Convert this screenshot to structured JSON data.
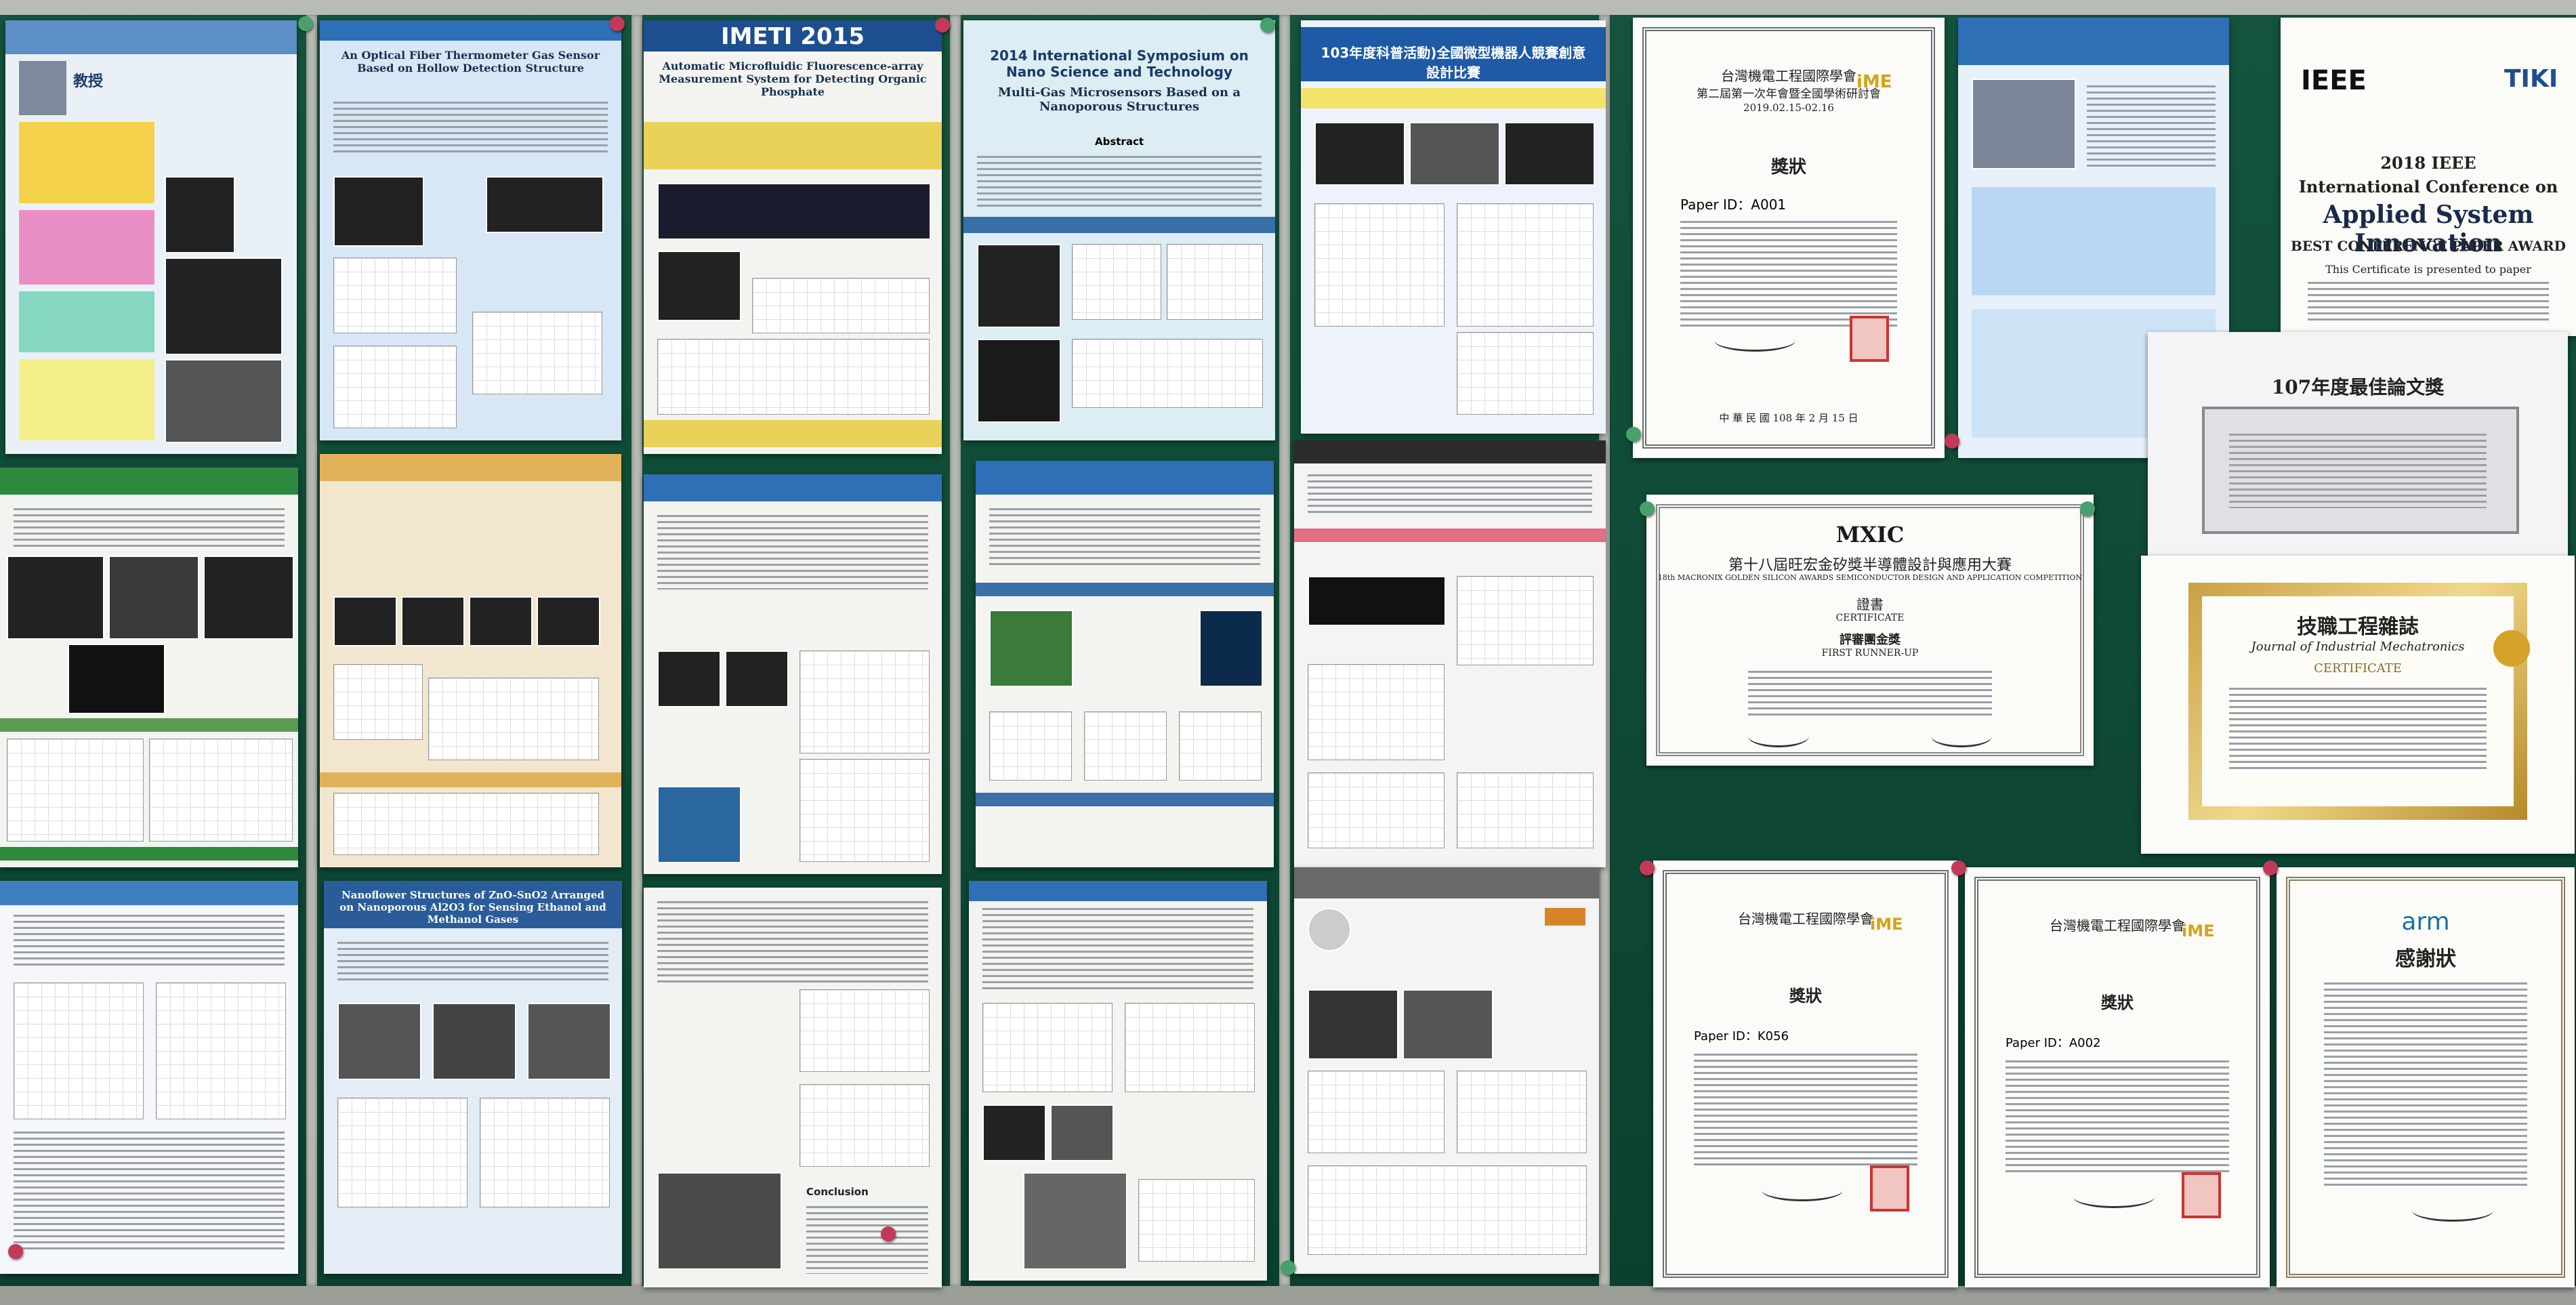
{
  "posters": {
    "imeti_banner": "IMETI 2015",
    "imeti_title": "Automatic Microfluidic Fluorescence-array Measurement System for Detecting Organic Phosphate",
    "nano2014_header": "2014 International Symposium on Nano Science and Technology",
    "nano2014_title": "Multi-Gas Microsensors Based on a Nanoporous Structures",
    "nano2014_abstract": "Abstract",
    "robot_title": "103年度科普活動)全國微型機器人競賽創意設計比賽",
    "fiber_title": "An Optical Fiber Thermometer Gas Sensor Based on Hollow Detection Structure",
    "zno_title": "Nanoflower Structures of ZnO-SnO2 Arranged on Nanoporous Al2O3 for Sensing Ethanol and Methanol Gases",
    "professor_label": "教授",
    "conclusion": "Conclusion"
  },
  "certificates": {
    "award_top": {
      "society": "台灣機電工程國際學會",
      "conference": "第二屆第一次年會暨全國學術研討會",
      "dates": "2019.02.15-02.16",
      "heading": "獎狀",
      "paper_id": "Paper ID：A001",
      "date_line": "中 華 民 國 108 年 2 月 15 日",
      "logo": "iME"
    },
    "mxic": {
      "logo": "MXIC",
      "title": "第十八屆旺宏金矽獎半導體設計與應用大賽",
      "subtitle": "18th MACRONIX GOLDEN SILICON AWARDS SEMICONDUCTOR DESIGN AND APPLICATION COMPETITION",
      "heading": "證書",
      "heading_en": "CERTIFICATE",
      "award": "評審團金獎",
      "award_en": "FIRST RUNNER-UP"
    },
    "ieee": {
      "ieee_logo": "IEEE",
      "tiki_logo": "TIKI",
      "year": "2018 IEEE",
      "line1": "International Conference on",
      "line2": "Applied System Innovation",
      "award": "BEST CONFERENCE PAPER AWARD",
      "presented": "This Certificate is presented to paper"
    },
    "journal": {
      "title": "技職工程雜誌",
      "title_en": "Journal of Industrial Mechatronics",
      "heading": "CERTIFICATE"
    },
    "year107": {
      "title": "107年度最佳論文獎"
    },
    "award_bottom_left": {
      "society": "台灣機電工程國際學會",
      "heading": "獎狀",
      "paper_id": "Paper ID：K056",
      "logo": "iME"
    },
    "award_bottom_mid": {
      "society": "台灣機電工程國際學會",
      "heading": "獎狀",
      "paper_id": "Paper ID：A002",
      "logo": "iME"
    },
    "arm": {
      "logo": "arm",
      "heading": "感謝狀"
    }
  },
  "colors": {
    "board": "#0e4934",
    "frame": "#b9bbb5",
    "poster_blue": "#2f6fb5",
    "poster_green": "#2e8a3e",
    "cert_gold": "#c99a2e",
    "pin_red": "#c23a57",
    "pin_green": "#4aa06c"
  }
}
